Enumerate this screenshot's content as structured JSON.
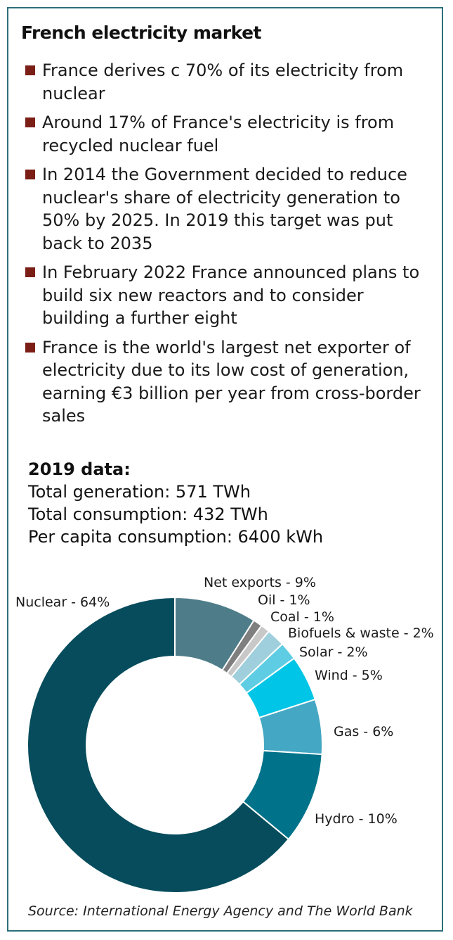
{
  "title": "French electricity market",
  "bullets": [
    "France derives c 70% of its electricity from nuclear",
    "Around 17% of France's electricity is from recycled nuclear fuel",
    "In 2014 the Government decided to reduce nuclear's share of electricity generation to 50% by 2025. In 2019 this target was put back to 2035",
    "In February 2022 France announced plans to build six new reactors and to consider building a further eight",
    "France is the world's largest net exporter of electricity due to its low cost of generation, earning €3 billion per year from cross-border sales"
  ],
  "stats": {
    "heading": "2019 data:",
    "lines": [
      "Total generation: 571 TWh",
      "Total consumption: 432 TWh",
      "Per capita consumption: 6400 kWh"
    ]
  },
  "chart_data": {
    "type": "pie",
    "donut": true,
    "slices": [
      {
        "label": "Net exports - 9%",
        "name": "Net exports",
        "value": 9,
        "color": "#4e7d89"
      },
      {
        "label": "Oil - 1%",
        "name": "Oil",
        "value": 1,
        "color": "#7f7f7f"
      },
      {
        "label": "Coal - 1%",
        "name": "Coal",
        "value": 1,
        "color": "#c8c8c8"
      },
      {
        "label": "Biofuels & waste - 2%",
        "name": "Biofuels & waste",
        "value": 2,
        "color": "#9fcfdc"
      },
      {
        "label": "Solar - 2%",
        "name": "Solar",
        "value": 2,
        "color": "#5ecde3"
      },
      {
        "label": "Wind - 5%",
        "name": "Wind",
        "value": 5,
        "color": "#00c5e6"
      },
      {
        "label": "Gas - 6%",
        "name": "Gas",
        "value": 6,
        "color": "#44a7c4"
      },
      {
        "label": "Hydro - 10%",
        "name": "Hydro",
        "value": 10,
        "color": "#00738a"
      },
      {
        "label": "Nuclear - 64%",
        "name": "Nuclear",
        "value": 64,
        "color": "#064c5c"
      }
    ]
  },
  "source": "Source: International Energy Agency and The World Bank"
}
